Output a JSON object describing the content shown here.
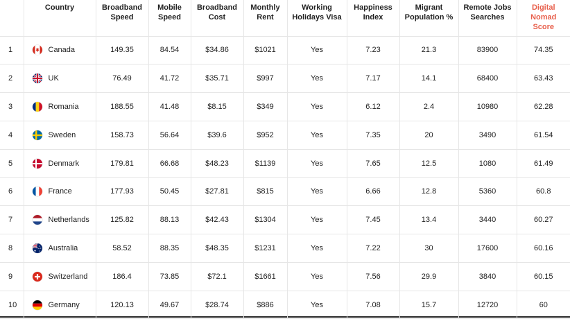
{
  "table": {
    "headers": [
      "",
      "Country",
      "Broadband Speed",
      "Mobile Speed",
      "Broadband Cost",
      "Monthly Rent",
      "Working Holidays Visa",
      "Happiness Index",
      "Migrant Population %",
      "Remote Jobs Searches",
      "Digital Nomad Score"
    ],
    "accent_color": "#e8604c",
    "rows": [
      {
        "rank": "1",
        "flag_icon": "canada-flag-icon",
        "country": "Canada",
        "broadband_speed": "149.35",
        "mobile_speed": "84.54",
        "broadband_cost": "$34.86",
        "monthly_rent": "$1021",
        "visa": "Yes",
        "happiness": "7.23",
        "migrant": "21.3",
        "remote_jobs": "83900",
        "score": "74.35"
      },
      {
        "rank": "2",
        "flag_icon": "uk-flag-icon",
        "country": "UK",
        "broadband_speed": "76.49",
        "mobile_speed": "41.72",
        "broadband_cost": "$35.71",
        "monthly_rent": "$997",
        "visa": "Yes",
        "happiness": "7.17",
        "migrant": "14.1",
        "remote_jobs": "68400",
        "score": "63.43"
      },
      {
        "rank": "3",
        "flag_icon": "romania-flag-icon",
        "country": "Romania",
        "broadband_speed": "188.55",
        "mobile_speed": "41.48",
        "broadband_cost": "$8.15",
        "monthly_rent": "$349",
        "visa": "Yes",
        "happiness": "6.12",
        "migrant": "2.4",
        "remote_jobs": "10980",
        "score": "62.28"
      },
      {
        "rank": "4",
        "flag_icon": "sweden-flag-icon",
        "country": "Sweden",
        "broadband_speed": "158.73",
        "mobile_speed": "56.64",
        "broadband_cost": "$39.6",
        "monthly_rent": "$952",
        "visa": "Yes",
        "happiness": "7.35",
        "migrant": "20",
        "remote_jobs": "3490",
        "score": "61.54"
      },
      {
        "rank": "5",
        "flag_icon": "denmark-flag-icon",
        "country": "Denmark",
        "broadband_speed": "179.81",
        "mobile_speed": "66.68",
        "broadband_cost": "$48.23",
        "monthly_rent": "$1139",
        "visa": "Yes",
        "happiness": "7.65",
        "migrant": "12.5",
        "remote_jobs": "1080",
        "score": "61.49"
      },
      {
        "rank": "6",
        "flag_icon": "france-flag-icon",
        "country": "France",
        "broadband_speed": "177.93",
        "mobile_speed": "50.45",
        "broadband_cost": "$27.81",
        "monthly_rent": "$815",
        "visa": "Yes",
        "happiness": "6.66",
        "migrant": "12.8",
        "remote_jobs": "5360",
        "score": "60.8"
      },
      {
        "rank": "7",
        "flag_icon": "netherlands-flag-icon",
        "country": "Netherlands",
        "broadband_speed": "125.82",
        "mobile_speed": "88.13",
        "broadband_cost": "$42.43",
        "monthly_rent": "$1304",
        "visa": "Yes",
        "happiness": "7.45",
        "migrant": "13.4",
        "remote_jobs": "3440",
        "score": "60.27"
      },
      {
        "rank": "8",
        "flag_icon": "australia-flag-icon",
        "country": "Australia",
        "broadband_speed": "58.52",
        "mobile_speed": "88.35",
        "broadband_cost": "$48.35",
        "monthly_rent": "$1231",
        "visa": "Yes",
        "happiness": "7.22",
        "migrant": "30",
        "remote_jobs": "17600",
        "score": "60.16"
      },
      {
        "rank": "9",
        "flag_icon": "switzerland-flag-icon",
        "country": "Switzerland",
        "broadband_speed": "186.4",
        "mobile_speed": "73.85",
        "broadband_cost": "$72.1",
        "monthly_rent": "$1661",
        "visa": "Yes",
        "happiness": "7.56",
        "migrant": "29.9",
        "remote_jobs": "3840",
        "score": "60.15"
      },
      {
        "rank": "10",
        "flag_icon": "germany-flag-icon",
        "country": "Germany",
        "broadband_speed": "120.13",
        "mobile_speed": "49.67",
        "broadband_cost": "$28.74",
        "monthly_rent": "$886",
        "visa": "Yes",
        "happiness": "7.08",
        "migrant": "15.7",
        "remote_jobs": "12720",
        "score": "60"
      }
    ]
  }
}
